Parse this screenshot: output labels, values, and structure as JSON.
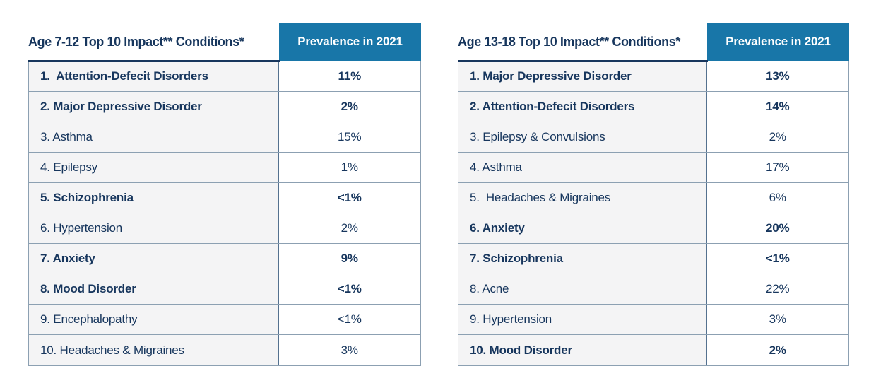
{
  "colors": {
    "header_bg": "#1876A8",
    "header_text": "#FFFFFF",
    "text_navy": "#17365D",
    "condition_cell_bg": "#F4F4F5",
    "value_cell_bg": "#FFFFFF",
    "grid_line": "#8CA0B2",
    "column_divider": "#54718F",
    "top_rule": "#17365D"
  },
  "chart_data": [
    {
      "type": "table",
      "title": "Age 7-12 Top 10 Impact** Conditions*",
      "value_header": "Prevalence in 2021",
      "columns": [
        "Condition",
        "Prevalence in 2021"
      ],
      "rows": [
        {
          "label": "1.  Attention-Defecit Disorders",
          "value": "11%",
          "bold": true
        },
        {
          "label": "2. Major Depressive Disorder",
          "value": "2%",
          "bold": true
        },
        {
          "label": "3. Asthma",
          "value": "15%",
          "bold": false
        },
        {
          "label": "4. Epilepsy",
          "value": "1%",
          "bold": false
        },
        {
          "label": "5. Schizophrenia",
          "value": "<1%",
          "bold": true
        },
        {
          "label": "6. Hypertension",
          "value": "2%",
          "bold": false
        },
        {
          "label": "7. Anxiety",
          "value": "9%",
          "bold": true
        },
        {
          "label": "8. Mood Disorder",
          "value": "<1%",
          "bold": true
        },
        {
          "label": "9. Encephalopathy",
          "value": "<1%",
          "bold": false
        },
        {
          "label": "10. Headaches & Migraines",
          "value": "3%",
          "bold": false
        }
      ]
    },
    {
      "type": "table",
      "title": "Age 13-18 Top 10 Impact** Conditions*",
      "value_header": "Prevalence in 2021",
      "columns": [
        "Condition",
        "Prevalence in 2021"
      ],
      "rows": [
        {
          "label": "1. Major Depressive Disorder",
          "value": "13%",
          "bold": true
        },
        {
          "label": "2. Attention-Defecit Disorders",
          "value": "14%",
          "bold": true
        },
        {
          "label": "3. Epilepsy & Convulsions",
          "value": "2%",
          "bold": false
        },
        {
          "label": "4. Asthma",
          "value": "17%",
          "bold": false
        },
        {
          "label": "5.  Headaches & Migraines",
          "value": "6%",
          "bold": false
        },
        {
          "label": "6. Anxiety",
          "value": "20%",
          "bold": true
        },
        {
          "label": "7. Schizophrenia",
          "value": "<1%",
          "bold": true
        },
        {
          "label": "8. Acne",
          "value": "22%",
          "bold": false
        },
        {
          "label": "9. Hypertension",
          "value": "3%",
          "bold": false
        },
        {
          "label": "10. Mood Disorder",
          "value": "2%",
          "bold": true
        }
      ]
    }
  ]
}
